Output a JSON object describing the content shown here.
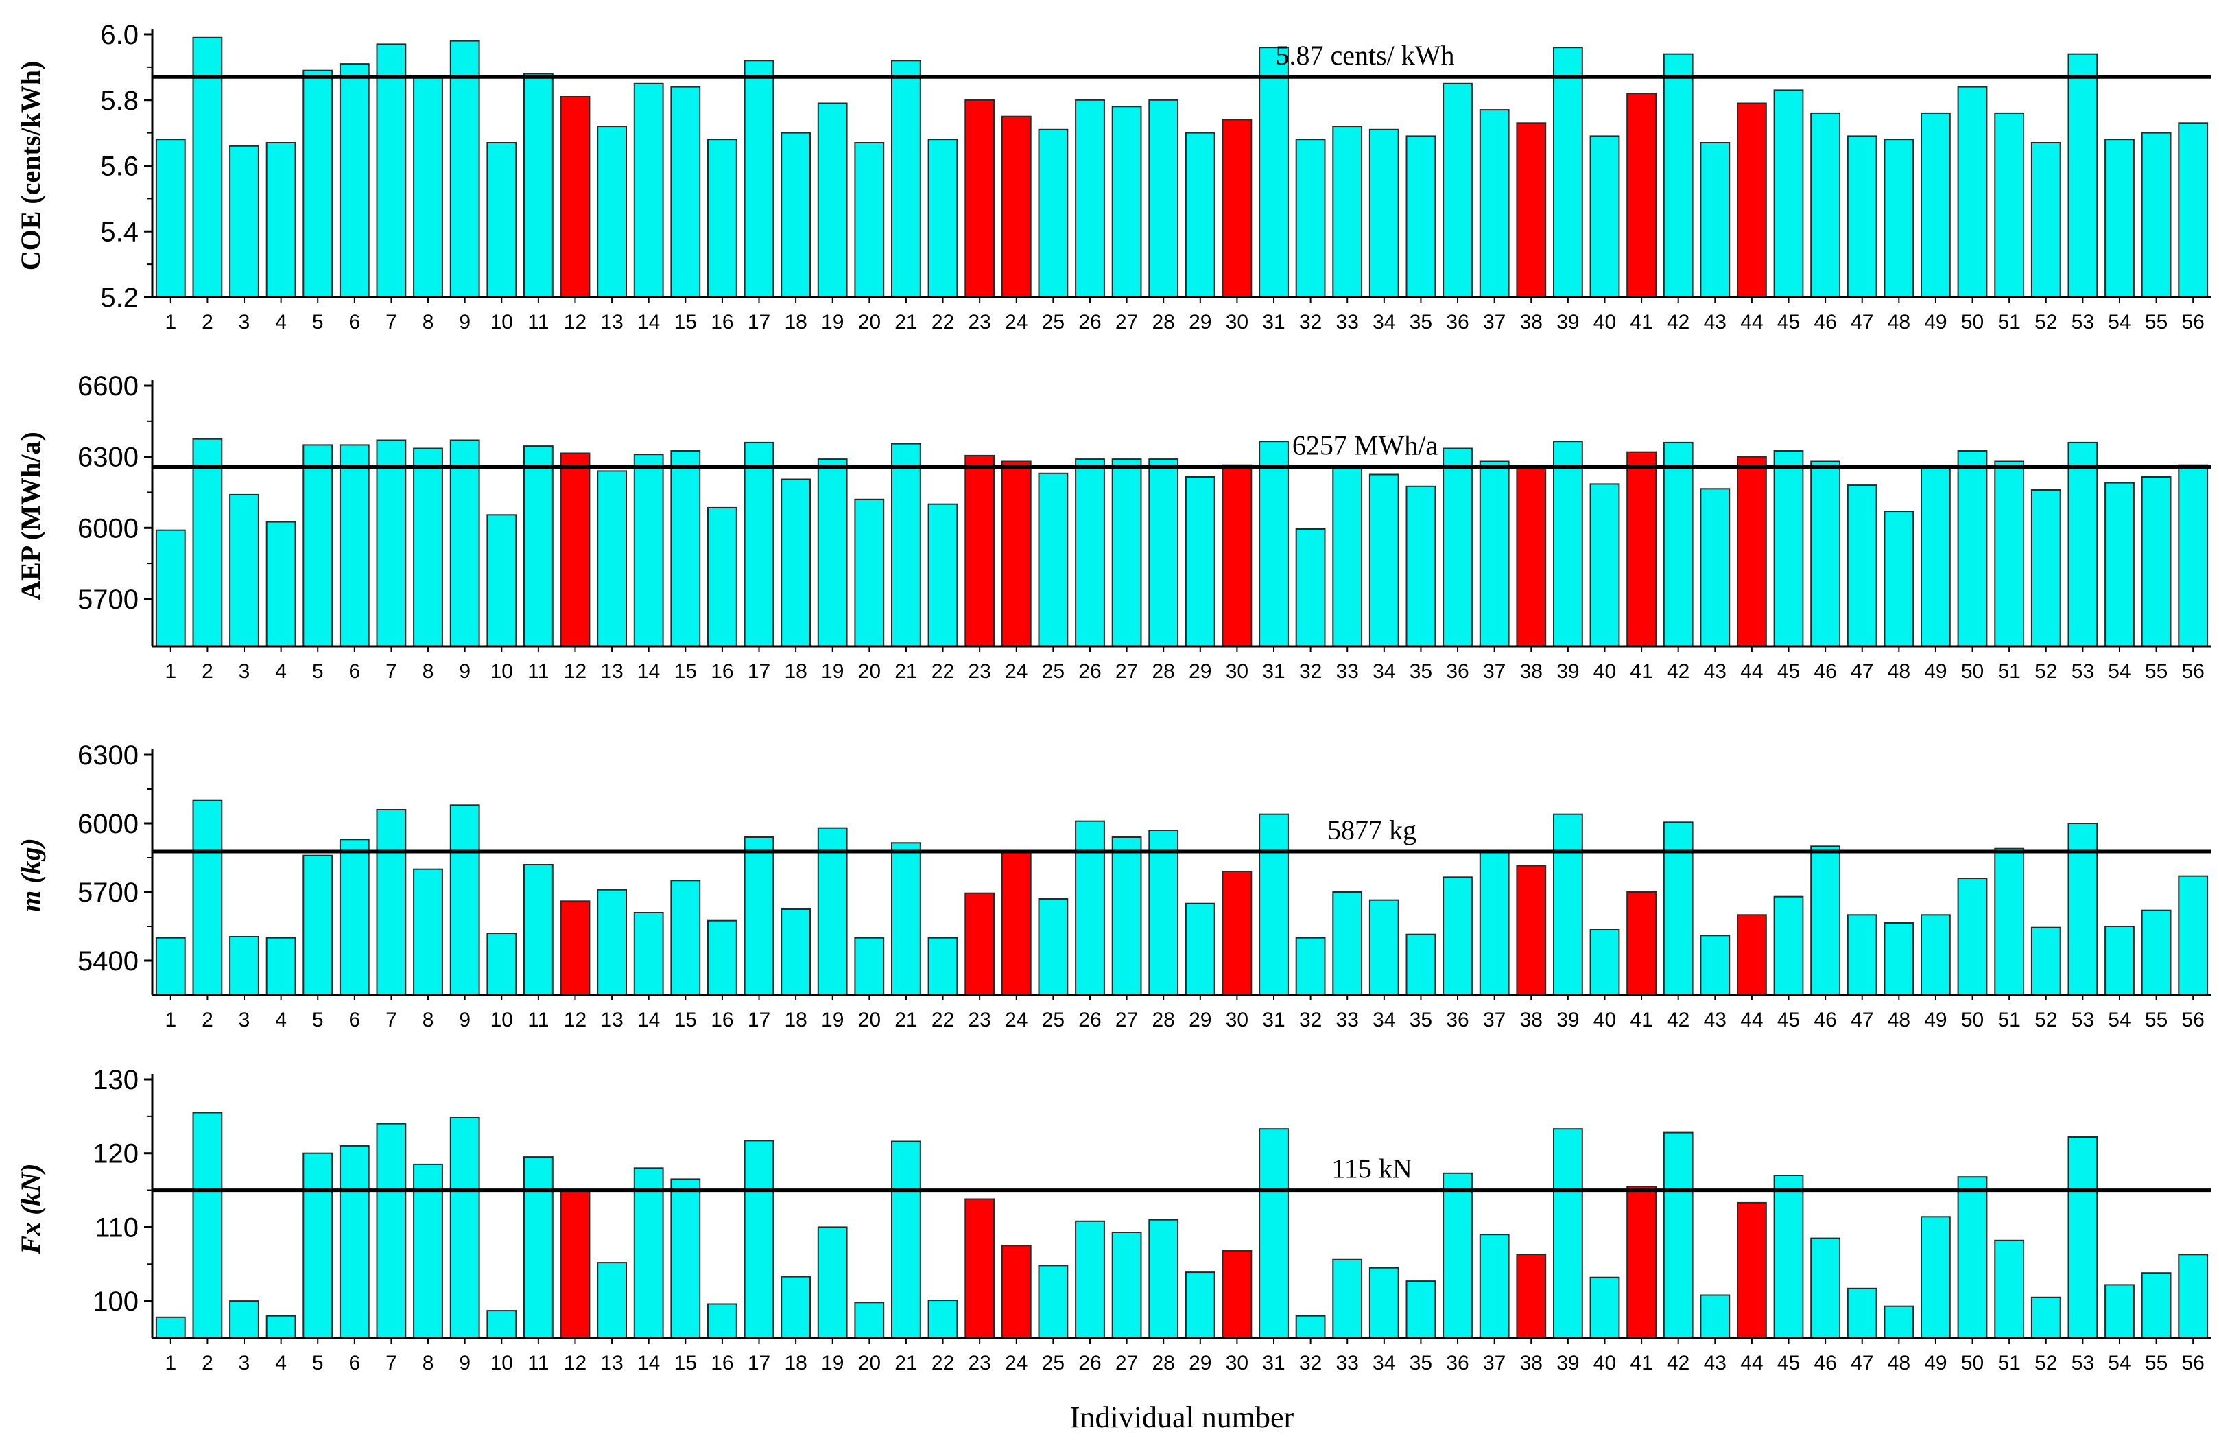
{
  "colors": {
    "normal": "#00F5F0",
    "highlight": "#FF0000",
    "axis": "#000000"
  },
  "chart_data": {
    "type": "bar",
    "xlabel": "Individual number",
    "categories": [
      "1",
      "2",
      "3",
      "4",
      "5",
      "6",
      "7",
      "8",
      "9",
      "10",
      "11",
      "12",
      "13",
      "14",
      "15",
      "16",
      "17",
      "18",
      "19",
      "20",
      "21",
      "22",
      "23",
      "24",
      "25",
      "26",
      "27",
      "28",
      "29",
      "30",
      "31",
      "32",
      "33",
      "34",
      "35",
      "36",
      "37",
      "38",
      "39",
      "40",
      "41",
      "42",
      "43",
      "44",
      "45",
      "46",
      "47",
      "48",
      "49",
      "50",
      "51",
      "52",
      "53",
      "54",
      "55",
      "56"
    ],
    "highlighted": [
      "12",
      "23",
      "24",
      "30",
      "38",
      "41",
      "44"
    ],
    "panels": [
      {
        "ylabel": "COE (cents/kWh)",
        "ylabel_italic": false,
        "ylim": [
          5.2,
          6.0
        ],
        "yticks": [
          5.2,
          5.4,
          5.6,
          5.8,
          6.0
        ],
        "ytick_labels": [
          "5.2",
          "5.4",
          "5.6",
          "5.8",
          "6.0"
        ],
        "reference": 5.87,
        "reference_label": "5.87 cents/ kWh",
        "values": [
          5.68,
          5.99,
          5.66,
          5.67,
          5.89,
          5.91,
          5.97,
          5.87,
          5.98,
          5.67,
          5.88,
          5.81,
          5.72,
          5.85,
          5.84,
          5.68,
          5.92,
          5.7,
          5.79,
          5.67,
          5.92,
          5.68,
          5.8,
          5.75,
          5.71,
          5.8,
          5.78,
          5.8,
          5.7,
          5.74,
          5.96,
          5.68,
          5.72,
          5.71,
          5.69,
          5.85,
          5.77,
          5.73,
          5.96,
          5.69,
          5.82,
          5.94,
          5.67,
          5.79,
          5.83,
          5.76,
          5.69,
          5.68,
          5.76,
          5.84,
          5.76,
          5.67,
          5.94,
          5.68,
          5.7,
          5.73
        ]
      },
      {
        "ylabel": "AEP (MWh/a)",
        "ylabel_italic": false,
        "ylim": [
          5500,
          6600
        ],
        "yticks": [
          5700,
          6000,
          6300,
          6600
        ],
        "ytick_labels": [
          "5700",
          "6000",
          "6300",
          "6600"
        ],
        "reference": 6257,
        "reference_label": "6257 MWh/a",
        "values": [
          5990,
          6375,
          6140,
          6025,
          6350,
          6350,
          6370,
          6335,
          6370,
          6055,
          6345,
          6315,
          6240,
          6310,
          6325,
          6085,
          6360,
          6205,
          6290,
          6120,
          6355,
          6100,
          6305,
          6280,
          6230,
          6290,
          6290,
          6290,
          6215,
          6265,
          6365,
          5995,
          6250,
          6225,
          6175,
          6335,
          6280,
          6255,
          6365,
          6185,
          6320,
          6360,
          6165,
          6300,
          6325,
          6280,
          6180,
          6070,
          6255,
          6325,
          6280,
          6160,
          6360,
          6190,
          6215,
          6265
        ]
      },
      {
        "ylabel": "m (kg)",
        "ylabel_italic": true,
        "ylim": [
          5250,
          6300
        ],
        "yticks": [
          5400,
          5700,
          6000,
          6300
        ],
        "ytick_labels": [
          "5400",
          "5700",
          "6000",
          "6300"
        ],
        "reference": 5877,
        "reference_label": "5877 kg",
        "values": [
          5500,
          6100,
          5505,
          5500,
          5860,
          5930,
          6060,
          5800,
          6080,
          5520,
          5820,
          5660,
          5710,
          5610,
          5750,
          5575,
          5940,
          5625,
          5980,
          5500,
          5915,
          5500,
          5695,
          5875,
          5670,
          6010,
          5940,
          5970,
          5650,
          5790,
          6040,
          5500,
          5700,
          5665,
          5515,
          5765,
          5875,
          5815,
          6040,
          5535,
          5700,
          6005,
          5510,
          5600,
          5680,
          5900,
          5600,
          5565,
          5600,
          5760,
          5890,
          5545,
          6000,
          5550,
          5620,
          5770
        ]
      },
      {
        "ylabel": "Fx (kN)",
        "ylabel_italic": true,
        "ylim": [
          95,
          130
        ],
        "yticks": [
          100,
          110,
          120,
          130
        ],
        "ytick_labels": [
          "100",
          "110",
          "120",
          "130"
        ],
        "reference": 115,
        "reference_label": "115 kN",
        "values": [
          97.8,
          125.5,
          100.0,
          98.0,
          120.0,
          121.0,
          124.0,
          118.5,
          124.8,
          98.7,
          119.5,
          115.0,
          105.2,
          118.0,
          116.5,
          99.6,
          121.7,
          103.3,
          110.0,
          99.8,
          121.6,
          100.1,
          113.8,
          107.5,
          104.8,
          110.8,
          109.3,
          111.0,
          103.9,
          106.8,
          123.3,
          98.0,
          105.6,
          104.5,
          102.7,
          117.3,
          109.0,
          106.3,
          123.3,
          103.2,
          115.5,
          122.8,
          100.8,
          113.3,
          117.0,
          108.5,
          101.7,
          99.3,
          111.4,
          116.8,
          108.2,
          100.5,
          122.2,
          102.2,
          103.8,
          106.3
        ]
      }
    ]
  }
}
